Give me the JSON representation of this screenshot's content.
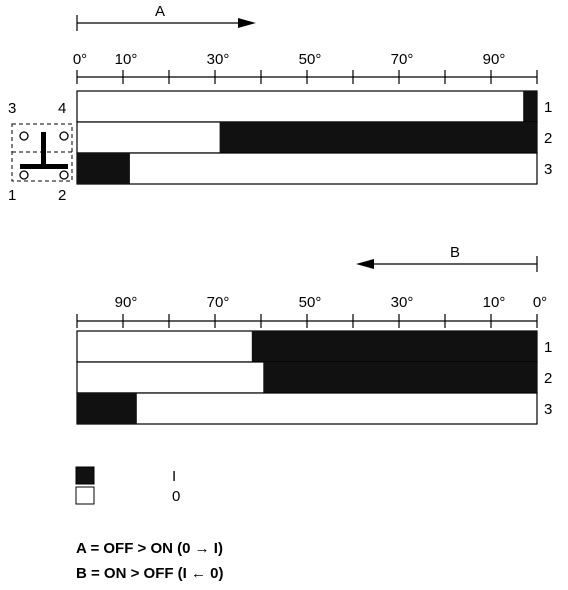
{
  "colors": {
    "on": "#111111",
    "off": "#ffffff",
    "line": "#000000"
  },
  "section_a": {
    "label": "A",
    "ticks": [
      "0°",
      "10°",
      "30°",
      "50°",
      "70°",
      "90°"
    ],
    "rows": [
      {
        "label": "1",
        "on_start": 97,
        "on_end": 100
      },
      {
        "label": "2",
        "on_start": 31,
        "on_end": 100
      },
      {
        "label": "3",
        "on_start": 0,
        "on_end": 11.5
      }
    ]
  },
  "section_b": {
    "label": "B",
    "ticks": [
      "90°",
      "70°",
      "50°",
      "30°",
      "10°",
      "0°"
    ],
    "rows": [
      {
        "label": "1",
        "on_start": 38,
        "on_end": 100
      },
      {
        "label": "2",
        "on_start": 40.5,
        "on_end": 100
      },
      {
        "label": "3",
        "on_start": 0,
        "on_end": 13
      }
    ]
  },
  "switch": {
    "top_left": "3",
    "top_right": "4",
    "bottom_left": "1",
    "bottom_right": "2"
  },
  "legend": {
    "on_label": "I",
    "off_label": "0"
  },
  "formulas": {
    "a": "A = OFF > ON (0 → I)",
    "b": "B = ON > OFF (I ← 0)"
  }
}
